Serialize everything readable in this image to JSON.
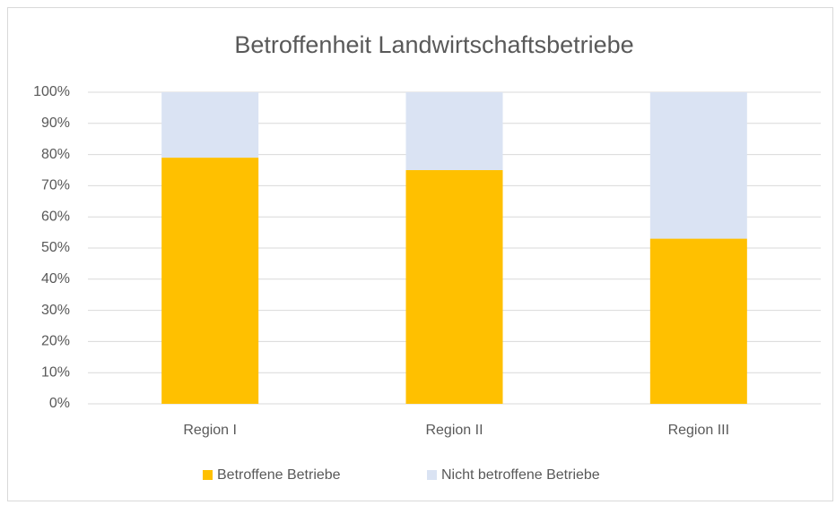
{
  "chart_data": {
    "type": "stacked_bar",
    "title": "Betroffenheit Landwirtschaftsbetriebe",
    "categories": [
      "Region I",
      "Region II",
      "Region III"
    ],
    "series": [
      {
        "name": "Betroffene Betriebe",
        "color": "#ffc000",
        "values": [
          79,
          75,
          53
        ]
      },
      {
        "name": "Nicht betroffene Betriebe",
        "color": "#dae3f3",
        "values": [
          21,
          25,
          47
        ]
      }
    ],
    "ylim": [
      0,
      100
    ],
    "yticks": [
      {
        "value": 0,
        "label": "0%"
      },
      {
        "value": 10,
        "label": "10%"
      },
      {
        "value": 20,
        "label": "20%"
      },
      {
        "value": 30,
        "label": "30%"
      },
      {
        "value": 40,
        "label": "40%"
      },
      {
        "value": 50,
        "label": "50%"
      },
      {
        "value": 60,
        "label": "60%"
      },
      {
        "value": 70,
        "label": "70%"
      },
      {
        "value": 80,
        "label": "80%"
      },
      {
        "value": 90,
        "label": "90%"
      },
      {
        "value": 100,
        "label": "100%"
      }
    ],
    "grid": true,
    "legend": "bottom"
  }
}
